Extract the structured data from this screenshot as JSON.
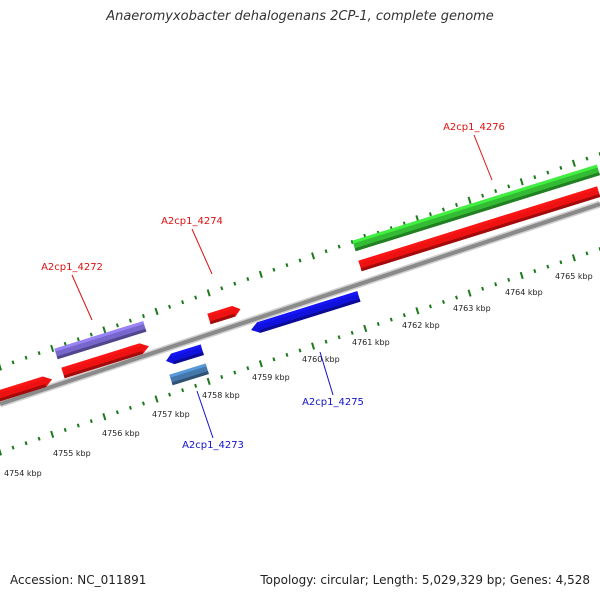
{
  "title": "Anaeromyxobacter dehalogenans 2CP-1, complete genome",
  "accession": "Accession: NC_011891",
  "topology": "Topology: circular; Length: 5,029,329 bp; Genes: 4,528",
  "colors": {
    "backbone": "#8a8a8a",
    "ruler": "#1a7a1a",
    "label_plus": "#dd1111",
    "label_minus": "#1111cc"
  },
  "kbp_ticks": [
    "4754 kbp",
    "4755 kbp",
    "4756 kbp",
    "4757 kbp",
    "4758 kbp",
    "4759 kbp",
    "4760 kbp",
    "4761 kbp",
    "4762 kbp",
    "4763 kbp",
    "4764 kbp",
    "4765 kbp"
  ],
  "gene_labels": [
    {
      "text": "A2cp1_4272",
      "strand": "plus"
    },
    {
      "text": "A2cp1_4274",
      "strand": "plus"
    },
    {
      "text": "A2cp1_4276",
      "strand": "plus"
    },
    {
      "text": "A2cp1_4273",
      "strand": "minus"
    },
    {
      "text": "A2cp1_4275",
      "strand": "minus"
    }
  ],
  "features": [
    {
      "name": "gene-left-edge",
      "strand": "plus",
      "color": "#ee1111"
    },
    {
      "name": "gene-4272",
      "strand": "plus",
      "color": "#ee1111"
    },
    {
      "name": "cds-4272",
      "strand": "plus",
      "color": "#7766cc"
    },
    {
      "name": "gene-4274",
      "strand": "plus",
      "color": "#ee1111"
    },
    {
      "name": "gene-4273",
      "strand": "minus",
      "color": "#1111dd"
    },
    {
      "name": "cds-4273",
      "strand": "minus",
      "color": "#4477aa"
    },
    {
      "name": "gene-4275",
      "strand": "minus",
      "color": "#1111dd"
    },
    {
      "name": "gene-4276",
      "strand": "plus",
      "color": "#ee1111"
    },
    {
      "name": "rna-4276",
      "strand": "plus",
      "color": "#33bb33"
    }
  ]
}
